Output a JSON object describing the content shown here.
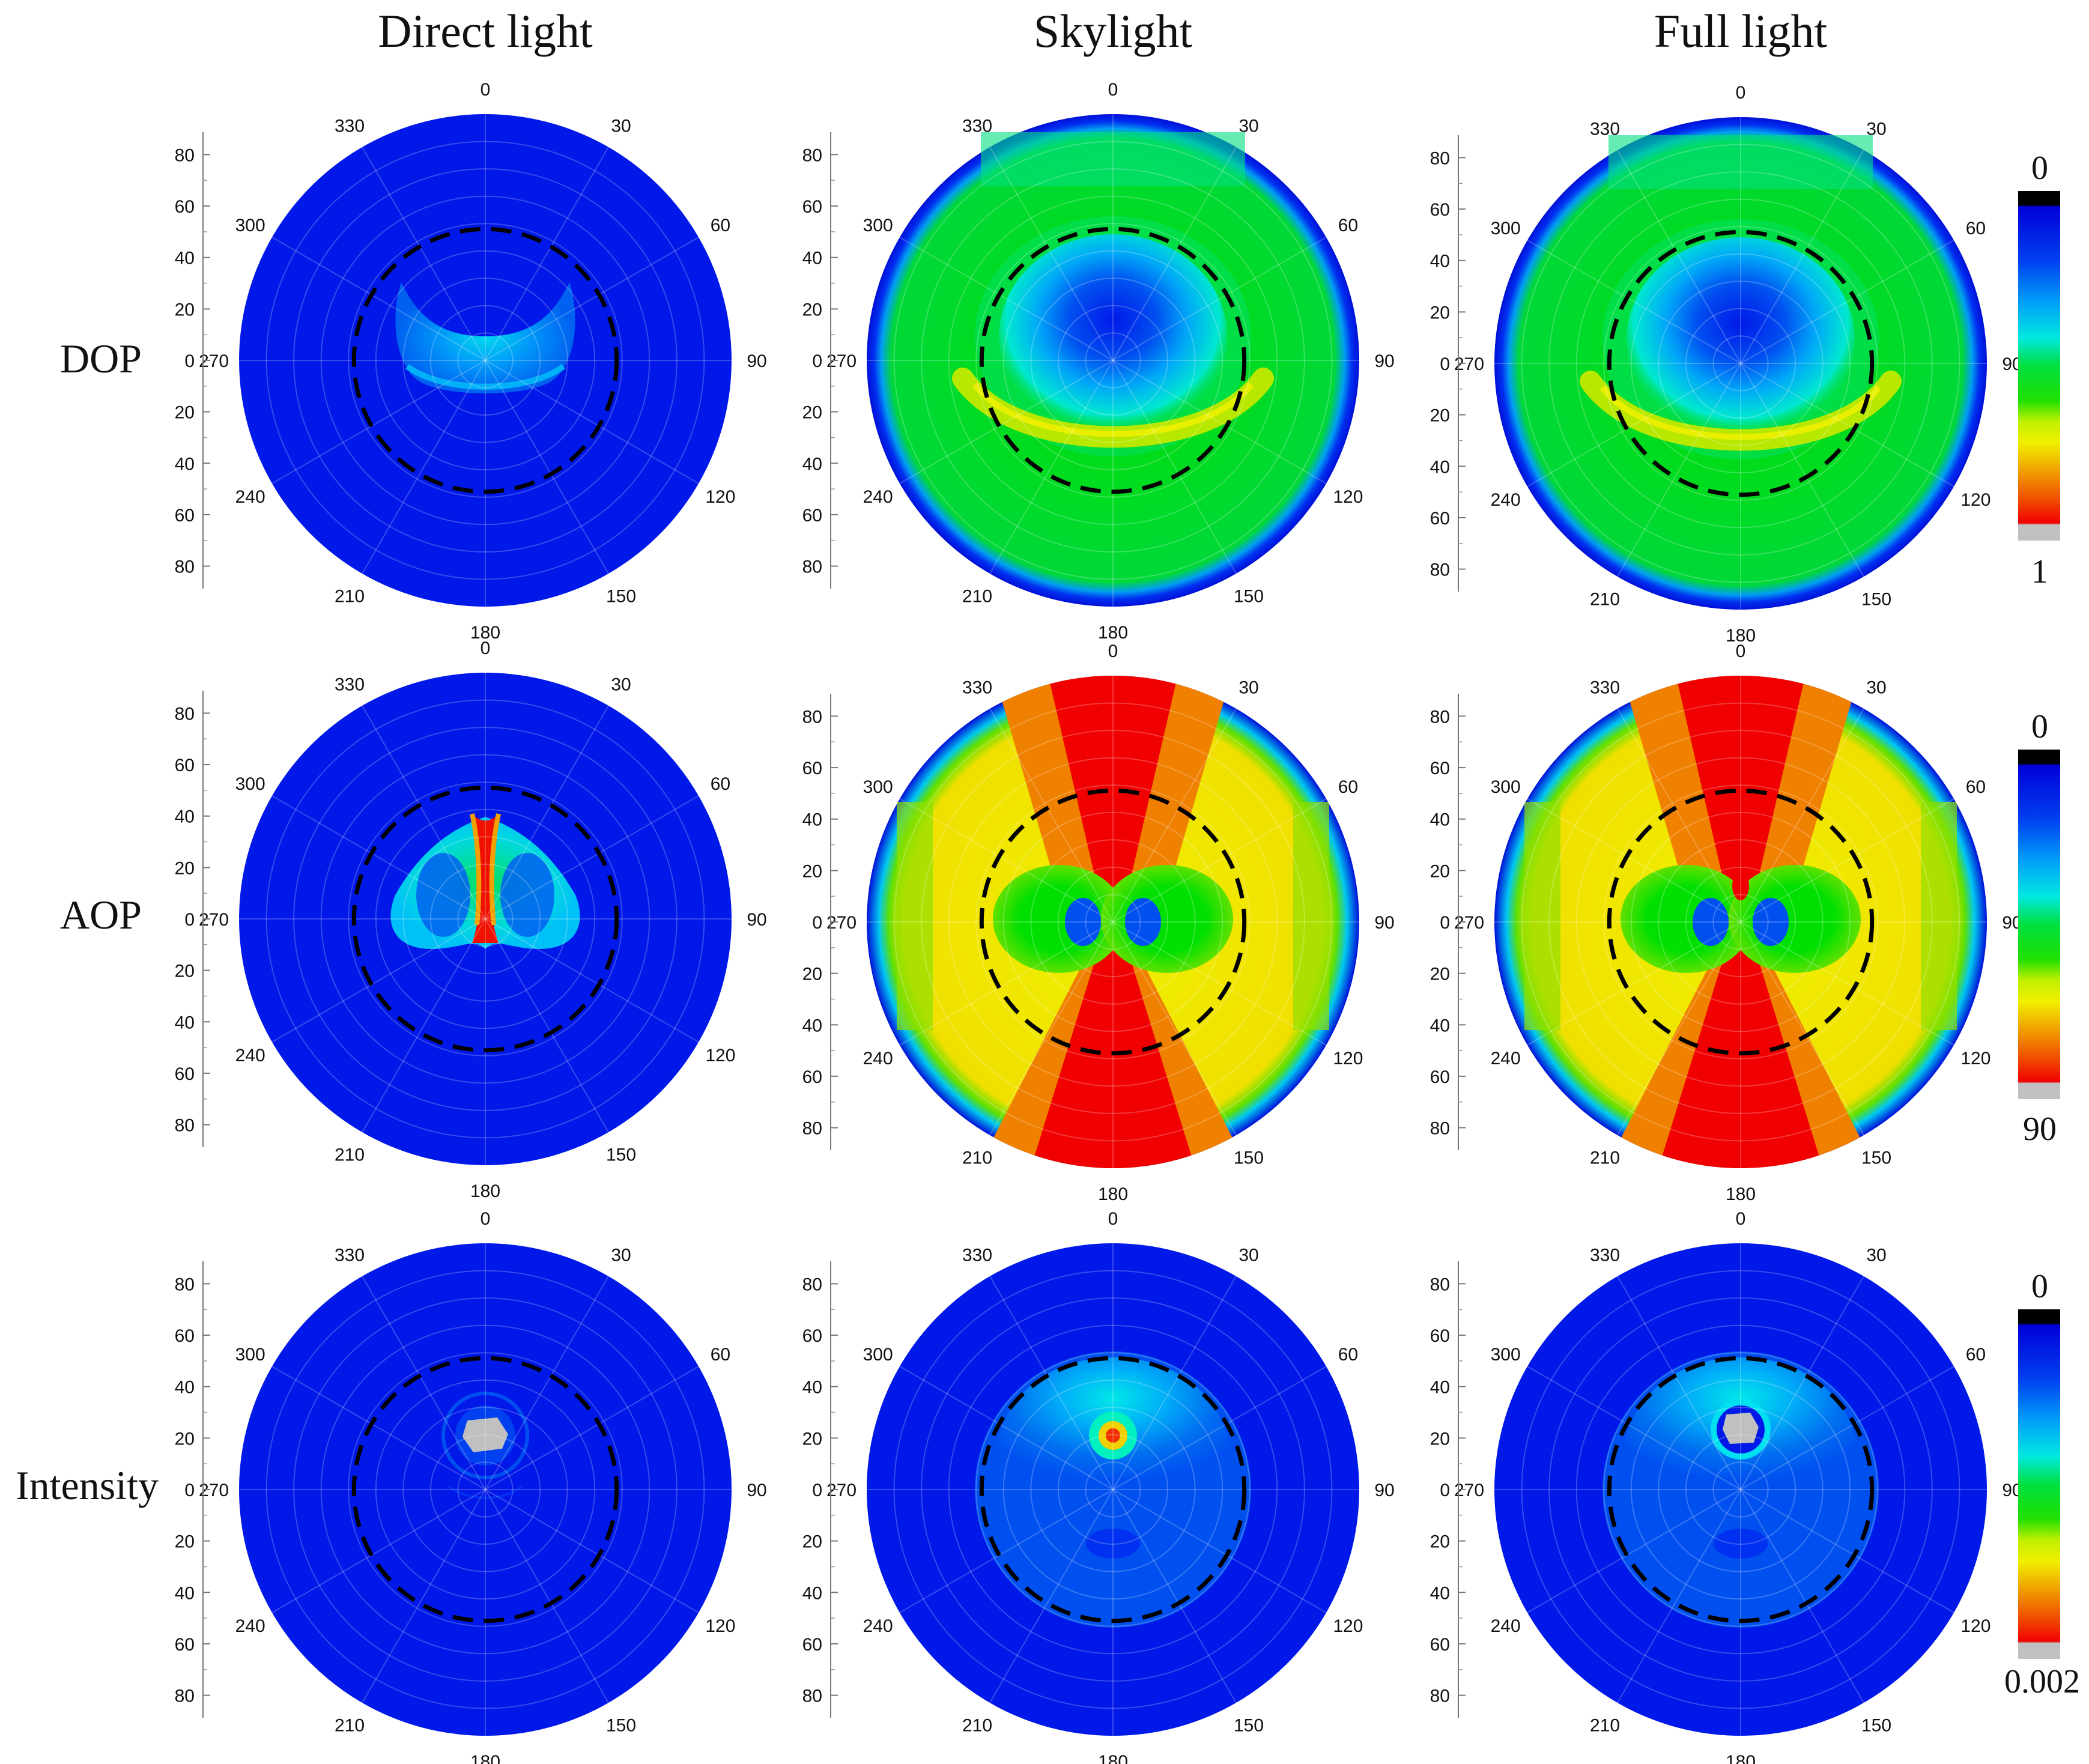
{
  "figure": {
    "column_titles": [
      "Direct light",
      "Skylight",
      "Full light"
    ],
    "row_labels": [
      "DOP",
      "AOP",
      "Intensity"
    ]
  },
  "axis": {
    "azimuth_ticks": [
      "0",
      "30",
      "60",
      "90",
      "120",
      "150",
      "180",
      "210",
      "240",
      "270",
      "300",
      "330"
    ],
    "zenith_ticks": [
      "80",
      "60",
      "40",
      "20",
      "0",
      "20",
      "40",
      "60",
      "80"
    ]
  },
  "colorbars": [
    {
      "row": "DOP",
      "min_label": "0",
      "max_label": "1"
    },
    {
      "row": "AOP",
      "min_label": "0",
      "max_label": "90"
    },
    {
      "row": "Intensity",
      "min_label": "0",
      "max_label": "0.002"
    }
  ],
  "colors": {
    "scale": [
      "#000000",
      "#0000d8",
      "#0020f0",
      "#0050f0",
      "#0080f8",
      "#00b0f8",
      "#00e0f0",
      "#00f0c0",
      "#00e060",
      "#00e000",
      "#80e000",
      "#d0f000",
      "#f0f000",
      "#f0c000",
      "#f09000",
      "#f06000",
      "#f03000",
      "#f00000",
      "#c0c0c0"
    ],
    "boundary_circle": "#000000"
  },
  "chart_data": [
    {
      "type": "heatmap",
      "projection": "polar",
      "row": "DOP",
      "column": "Direct light",
      "zenith_range": [
        0,
        90
      ],
      "dashed_circle_zenith": 48,
      "value_range": [
        0,
        1
      ]
    },
    {
      "type": "heatmap",
      "projection": "polar",
      "row": "DOP",
      "column": "Skylight",
      "zenith_range": [
        0,
        90
      ],
      "dashed_circle_zenith": 48,
      "value_range": [
        0,
        1
      ]
    },
    {
      "type": "heatmap",
      "projection": "polar",
      "row": "DOP",
      "column": "Full light",
      "zenith_range": [
        0,
        90
      ],
      "dashed_circle_zenith": 48,
      "value_range": [
        0,
        1
      ]
    },
    {
      "type": "heatmap",
      "projection": "polar",
      "row": "AOP",
      "column": "Direct light",
      "zenith_range": [
        0,
        90
      ],
      "dashed_circle_zenith": 48,
      "value_range": [
        0,
        90
      ]
    },
    {
      "type": "heatmap",
      "projection": "polar",
      "row": "AOP",
      "column": "Skylight",
      "zenith_range": [
        0,
        90
      ],
      "dashed_circle_zenith": 48,
      "value_range": [
        0,
        90
      ]
    },
    {
      "type": "heatmap",
      "projection": "polar",
      "row": "AOP",
      "column": "Full light",
      "zenith_range": [
        0,
        90
      ],
      "dashed_circle_zenith": 48,
      "value_range": [
        0,
        90
      ]
    },
    {
      "type": "heatmap",
      "projection": "polar",
      "row": "Intensity",
      "column": "Direct light",
      "zenith_range": [
        0,
        90
      ],
      "dashed_circle_zenith": 48,
      "value_range": [
        0,
        0.002
      ]
    },
    {
      "type": "heatmap",
      "projection": "polar",
      "row": "Intensity",
      "column": "Skylight",
      "zenith_range": [
        0,
        90
      ],
      "dashed_circle_zenith": 48,
      "value_range": [
        0,
        0.002
      ]
    },
    {
      "type": "heatmap",
      "projection": "polar",
      "row": "Intensity",
      "column": "Full light",
      "zenith_range": [
        0,
        90
      ],
      "dashed_circle_zenith": 48,
      "value_range": [
        0,
        0.002
      ]
    }
  ]
}
